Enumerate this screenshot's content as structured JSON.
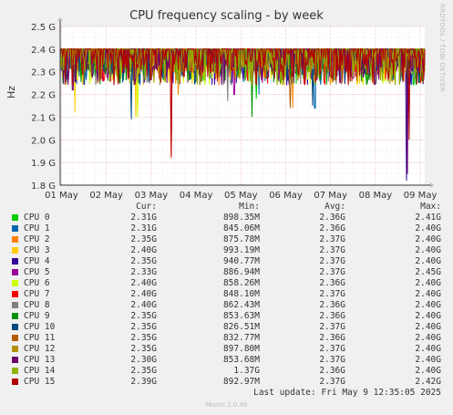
{
  "chart_data": {
    "type": "line",
    "title": "CPU frequency scaling - by week",
    "ylabel": "Hz",
    "side_label": "RRDTOOL / TOBI OETIKER",
    "ylim": [
      1.8,
      2.5
    ],
    "y_ticks": [
      {
        "value": 2.5,
        "label": "2.5 G"
      },
      {
        "value": 2.4,
        "label": "2.4 G"
      },
      {
        "value": 2.3,
        "label": "2.3 G"
      },
      {
        "value": 2.2,
        "label": "2.2 G"
      },
      {
        "value": 2.1,
        "label": "2.1 G"
      },
      {
        "value": 2.0,
        "label": "2.0 G"
      },
      {
        "value": 1.9,
        "label": "1.9 G"
      },
      {
        "value": 1.8,
        "label": "1.8 G"
      }
    ],
    "x_ticks": [
      {
        "day": 0,
        "label": "01 May"
      },
      {
        "day": 1,
        "label": "02 May"
      },
      {
        "day": 2,
        "label": "03 May"
      },
      {
        "day": 3,
        "label": "04 May"
      },
      {
        "day": 4,
        "label": "05 May"
      },
      {
        "day": 5,
        "label": "06 May"
      },
      {
        "day": 6,
        "label": "07 May"
      },
      {
        "day": 7,
        "label": "08 May"
      },
      {
        "day": 8,
        "label": "09 May"
      }
    ],
    "x_range_days": [
      -0.03,
      8.1
    ],
    "grid": true,
    "series": [
      {
        "name": "CPU 0",
        "color": "#00cc00",
        "min": 0.898,
        "avg": 2.36,
        "max": 2.41,
        "dips": [
          [
            0.03,
            2.25
          ],
          [
            4.35,
            2.18
          ]
        ]
      },
      {
        "name": "CPU 1",
        "color": "#0066b3",
        "min": 0.845,
        "avg": 2.36,
        "max": 2.4,
        "dips": [
          [
            5.65,
            2.14
          ],
          [
            4.4,
            2.2
          ]
        ]
      },
      {
        "name": "CPU 2",
        "color": "#ff8000",
        "min": 0.876,
        "avg": 2.37,
        "max": 2.4,
        "dips": [
          [
            5.15,
            2.14
          ],
          [
            2.6,
            2.2
          ]
        ]
      },
      {
        "name": "CPU 3",
        "color": "#ffcc00",
        "min": 0.993,
        "avg": 2.37,
        "max": 2.4,
        "dips": [
          [
            0.3,
            2.12
          ],
          [
            1.65,
            2.1
          ]
        ]
      },
      {
        "name": "CPU 4",
        "color": "#330099",
        "min": 0.941,
        "avg": 2.37,
        "max": 2.4,
        "dips": [
          [
            7.7,
            1.82
          ],
          [
            3.9,
            2.25
          ]
        ]
      },
      {
        "name": "CPU 5",
        "color": "#990099",
        "min": 0.887,
        "avg": 2.37,
        "max": 2.45,
        "dips": [
          [
            3.85,
            2.2
          ],
          [
            6.7,
            2.28
          ]
        ]
      },
      {
        "name": "CPU 6",
        "color": "#ccff00",
        "min": 0.858,
        "avg": 2.36,
        "max": 2.4,
        "dips": [
          [
            1.7,
            2.1
          ],
          [
            4.6,
            2.28
          ]
        ]
      },
      {
        "name": "CPU 7",
        "color": "#ff0000",
        "min": 0.848,
        "avg": 2.37,
        "max": 2.4,
        "dips": [
          [
            2.45,
            1.92
          ],
          [
            8.0,
            2.25
          ]
        ]
      },
      {
        "name": "CPU 8",
        "color": "#808080",
        "min": 0.862,
        "avg": 2.36,
        "max": 2.4,
        "dips": [
          [
            3.7,
            2.17
          ],
          [
            6.2,
            2.26
          ]
        ]
      },
      {
        "name": "CPU 9",
        "color": "#008f00",
        "min": 0.854,
        "avg": 2.36,
        "max": 2.4,
        "dips": [
          [
            4.25,
            2.1
          ],
          [
            1.3,
            2.25
          ]
        ]
      },
      {
        "name": "CPU 10",
        "color": "#00487d",
        "min": 0.827,
        "avg": 2.37,
        "max": 2.4,
        "dips": [
          [
            1.55,
            2.09
          ],
          [
            5.6,
            2.15
          ]
        ]
      },
      {
        "name": "CPU 11",
        "color": "#b35a00",
        "min": 0.833,
        "avg": 2.36,
        "max": 2.4,
        "dips": [
          [
            5.1,
            2.14
          ],
          [
            0.5,
            2.28
          ]
        ]
      },
      {
        "name": "CPU 12",
        "color": "#b38f00",
        "min": 0.898,
        "avg": 2.37,
        "max": 2.4,
        "dips": [
          [
            6.5,
            2.28
          ],
          [
            2.2,
            2.25
          ]
        ]
      },
      {
        "name": "CPU 13",
        "color": "#6b006b",
        "min": 0.854,
        "avg": 2.37,
        "max": 2.4,
        "dips": [
          [
            0.25,
            2.22
          ],
          [
            7.72,
            1.85
          ]
        ]
      },
      {
        "name": "CPU 14",
        "color": "#8fb300",
        "min": 1.37,
        "avg": 2.36,
        "max": 2.4,
        "dips": [
          [
            6.9,
            2.26
          ],
          [
            3.3,
            2.27
          ]
        ]
      },
      {
        "name": "CPU 15",
        "color": "#b30000",
        "min": 0.893,
        "avg": 2.37,
        "max": 2.42,
        "dips": [
          [
            2.45,
            1.93
          ],
          [
            7.75,
            2.0
          ]
        ]
      }
    ]
  },
  "legend": {
    "headers": {
      "cur": "Cur:",
      "min": "Min:",
      "avg": "Avg:",
      "max": "Max:"
    },
    "rows": [
      {
        "name": "CPU 0",
        "cur": "2.31G",
        "min": "898.35M",
        "avg": "2.36G",
        "max": "2.41G"
      },
      {
        "name": "CPU 1",
        "cur": "2.31G",
        "min": "845.06M",
        "avg": "2.36G",
        "max": "2.40G"
      },
      {
        "name": "CPU 2",
        "cur": "2.35G",
        "min": "875.78M",
        "avg": "2.37G",
        "max": "2.40G"
      },
      {
        "name": "CPU 3",
        "cur": "2.40G",
        "min": "993.19M",
        "avg": "2.37G",
        "max": "2.40G"
      },
      {
        "name": "CPU 4",
        "cur": "2.35G",
        "min": "940.77M",
        "avg": "2.37G",
        "max": "2.40G"
      },
      {
        "name": "CPU 5",
        "cur": "2.33G",
        "min": "886.94M",
        "avg": "2.37G",
        "max": "2.45G"
      },
      {
        "name": "CPU 6",
        "cur": "2.40G",
        "min": "858.26M",
        "avg": "2.36G",
        "max": "2.40G"
      },
      {
        "name": "CPU 7",
        "cur": "2.40G",
        "min": "848.10M",
        "avg": "2.37G",
        "max": "2.40G"
      },
      {
        "name": "CPU 8",
        "cur": "2.40G",
        "min": "862.43M",
        "avg": "2.36G",
        "max": "2.40G"
      },
      {
        "name": "CPU 9",
        "cur": "2.35G",
        "min": "853.63M",
        "avg": "2.36G",
        "max": "2.40G"
      },
      {
        "name": "CPU 10",
        "cur": "2.35G",
        "min": "826.51M",
        "avg": "2.37G",
        "max": "2.40G"
      },
      {
        "name": "CPU 11",
        "cur": "2.35G",
        "min": "832.77M",
        "avg": "2.36G",
        "max": "2.40G"
      },
      {
        "name": "CPU 12",
        "cur": "2.35G",
        "min": "897.80M",
        "avg": "2.37G",
        "max": "2.40G"
      },
      {
        "name": "CPU 13",
        "cur": "2.30G",
        "min": "853.68M",
        "avg": "2.37G",
        "max": "2.40G"
      },
      {
        "name": "CPU 14",
        "cur": "2.35G",
        "min": "1.37G",
        "avg": "2.36G",
        "max": "2.40G"
      },
      {
        "name": "CPU 15",
        "cur": "2.39G",
        "min": "892.97M",
        "avg": "2.37G",
        "max": "2.42G"
      }
    ]
  },
  "last_update": "Last update: Fri May  9 12:35:05 2025",
  "munin_version": "Munin 2.0.49"
}
